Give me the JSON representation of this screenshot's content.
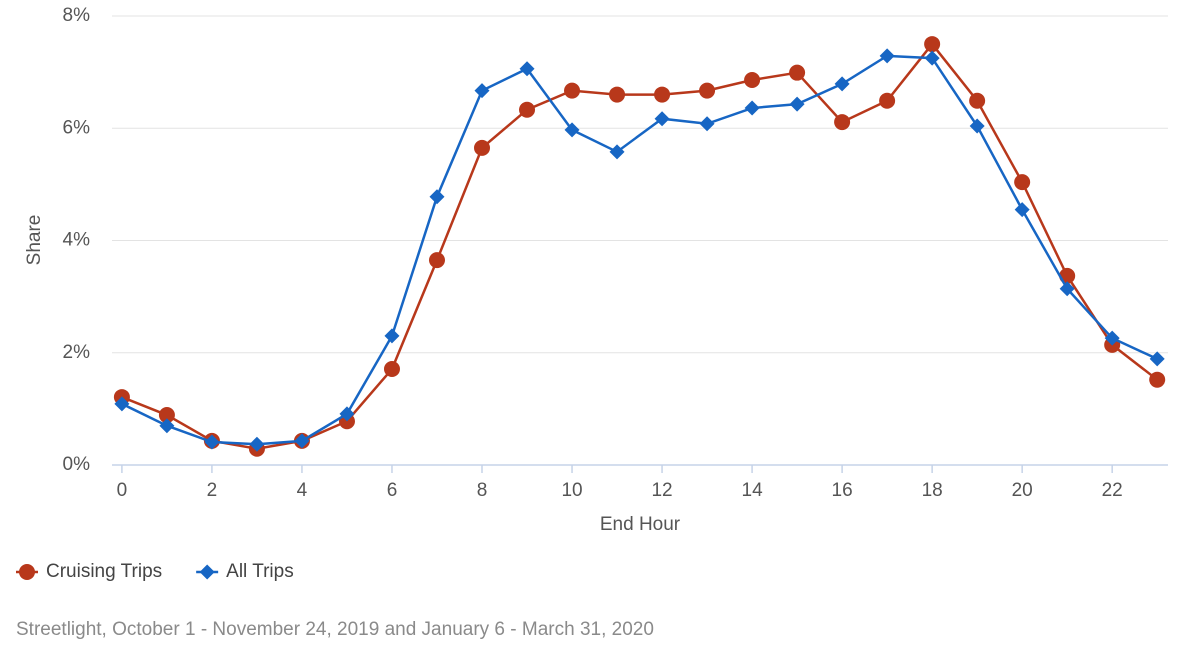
{
  "chart_data": {
    "type": "line",
    "x_label": "End Hour",
    "y_label": "Share",
    "x": [
      0,
      1,
      2,
      3,
      4,
      5,
      6,
      7,
      8,
      9,
      10,
      11,
      12,
      13,
      14,
      15,
      16,
      17,
      18,
      19,
      20,
      21,
      22,
      23
    ],
    "series": [
      {
        "name": "Cruising Trips",
        "color": "#b8381b",
        "marker": "circle",
        "values": [
          1.21,
          0.89,
          0.43,
          0.29,
          0.43,
          0.78,
          1.71,
          3.65,
          5.65,
          6.33,
          6.67,
          6.6,
          6.6,
          6.67,
          6.86,
          6.99,
          6.11,
          6.49,
          7.5,
          6.49,
          5.04,
          3.37,
          2.14,
          1.52
        ]
      },
      {
        "name": "All Trips",
        "color": "#1766c4",
        "marker": "diamond",
        "values": [
          1.09,
          0.7,
          0.41,
          0.37,
          0.43,
          0.91,
          2.3,
          4.78,
          6.67,
          7.06,
          5.97,
          5.58,
          6.17,
          6.08,
          6.36,
          6.43,
          6.79,
          7.29,
          7.25,
          6.04,
          4.55,
          3.14,
          2.26,
          1.89
        ]
      }
    ],
    "xlim": [
      -0.22,
      23.24
    ],
    "xticks": [
      0,
      2,
      4,
      6,
      8,
      10,
      12,
      14,
      16,
      18,
      20,
      22
    ],
    "ylim": [
      0,
      8
    ],
    "yticks": [
      {
        "value": 0,
        "label": "0%"
      },
      {
        "value": 2,
        "label": "2%"
      },
      {
        "value": 4,
        "label": "4%"
      },
      {
        "value": 6,
        "label": "6%"
      },
      {
        "value": 8,
        "label": "8%"
      }
    ],
    "grid": true,
    "legend": "bottom-left",
    "source": "Streetlight, October 1 - November 24, 2019 and January 6 - March 31, 2020"
  }
}
